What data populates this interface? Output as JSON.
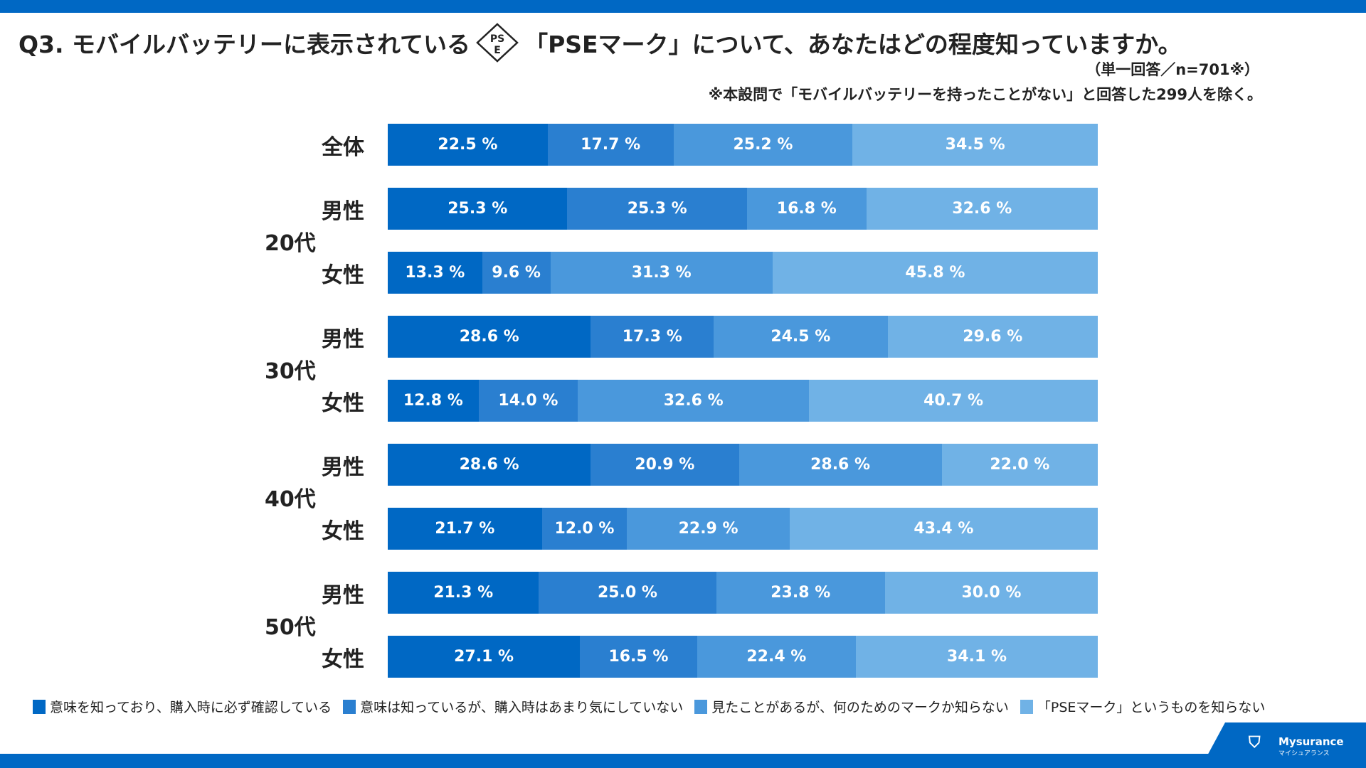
{
  "title_prefix": "Q3. モバイルバッテリーに表示されている",
  "title_suffix": "「PSEマーク」について、あなたはどの程度知っていますか。",
  "pse_mark": "PSE",
  "sample_note": "（単一回答／n=701※）",
  "exclusion_note": "※本設問で「モバイルバッテリーを持ったことがない」と回答した299人を除く。",
  "logo": {
    "name": "Mysurance",
    "kana": "マイシュアランス"
  },
  "chart_data": {
    "type": "bar",
    "orientation": "horizontal",
    "stacked": true,
    "unit": "%",
    "legend_position": "bottom",
    "colors": [
      "#0068c4",
      "#2a7fd0",
      "#4a98dc",
      "#70b2e6"
    ],
    "series_names": [
      "意味を知っており、購入時に必ず確認している",
      "意味は知っているが、購入時はあまり気にしていない",
      "見たことがあるが、何のためのマークか知らない",
      "「PSEマーク」というものを知らない"
    ],
    "rows": [
      {
        "group": "",
        "label": "全体",
        "values": [
          22.5,
          17.7,
          25.2,
          34.5
        ]
      },
      {
        "group": "20代",
        "label": "男性",
        "values": [
          25.3,
          25.3,
          16.8,
          32.6
        ]
      },
      {
        "group": "20代",
        "label": "女性",
        "values": [
          13.3,
          9.6,
          31.3,
          45.8
        ]
      },
      {
        "group": "30代",
        "label": "男性",
        "values": [
          28.6,
          17.3,
          24.5,
          29.6
        ]
      },
      {
        "group": "30代",
        "label": "女性",
        "values": [
          12.8,
          14.0,
          32.6,
          40.7
        ]
      },
      {
        "group": "40代",
        "label": "男性",
        "values": [
          28.6,
          20.9,
          28.6,
          22.0
        ]
      },
      {
        "group": "40代",
        "label": "女性",
        "values": [
          21.7,
          12.0,
          22.9,
          43.4
        ]
      },
      {
        "group": "50代",
        "label": "男性",
        "values": [
          21.3,
          25.0,
          23.8,
          30.0
        ]
      },
      {
        "group": "50代",
        "label": "女性",
        "values": [
          27.1,
          16.5,
          22.4,
          34.1
        ]
      }
    ],
    "groups": [
      "20代",
      "30代",
      "40代",
      "50代"
    ]
  }
}
